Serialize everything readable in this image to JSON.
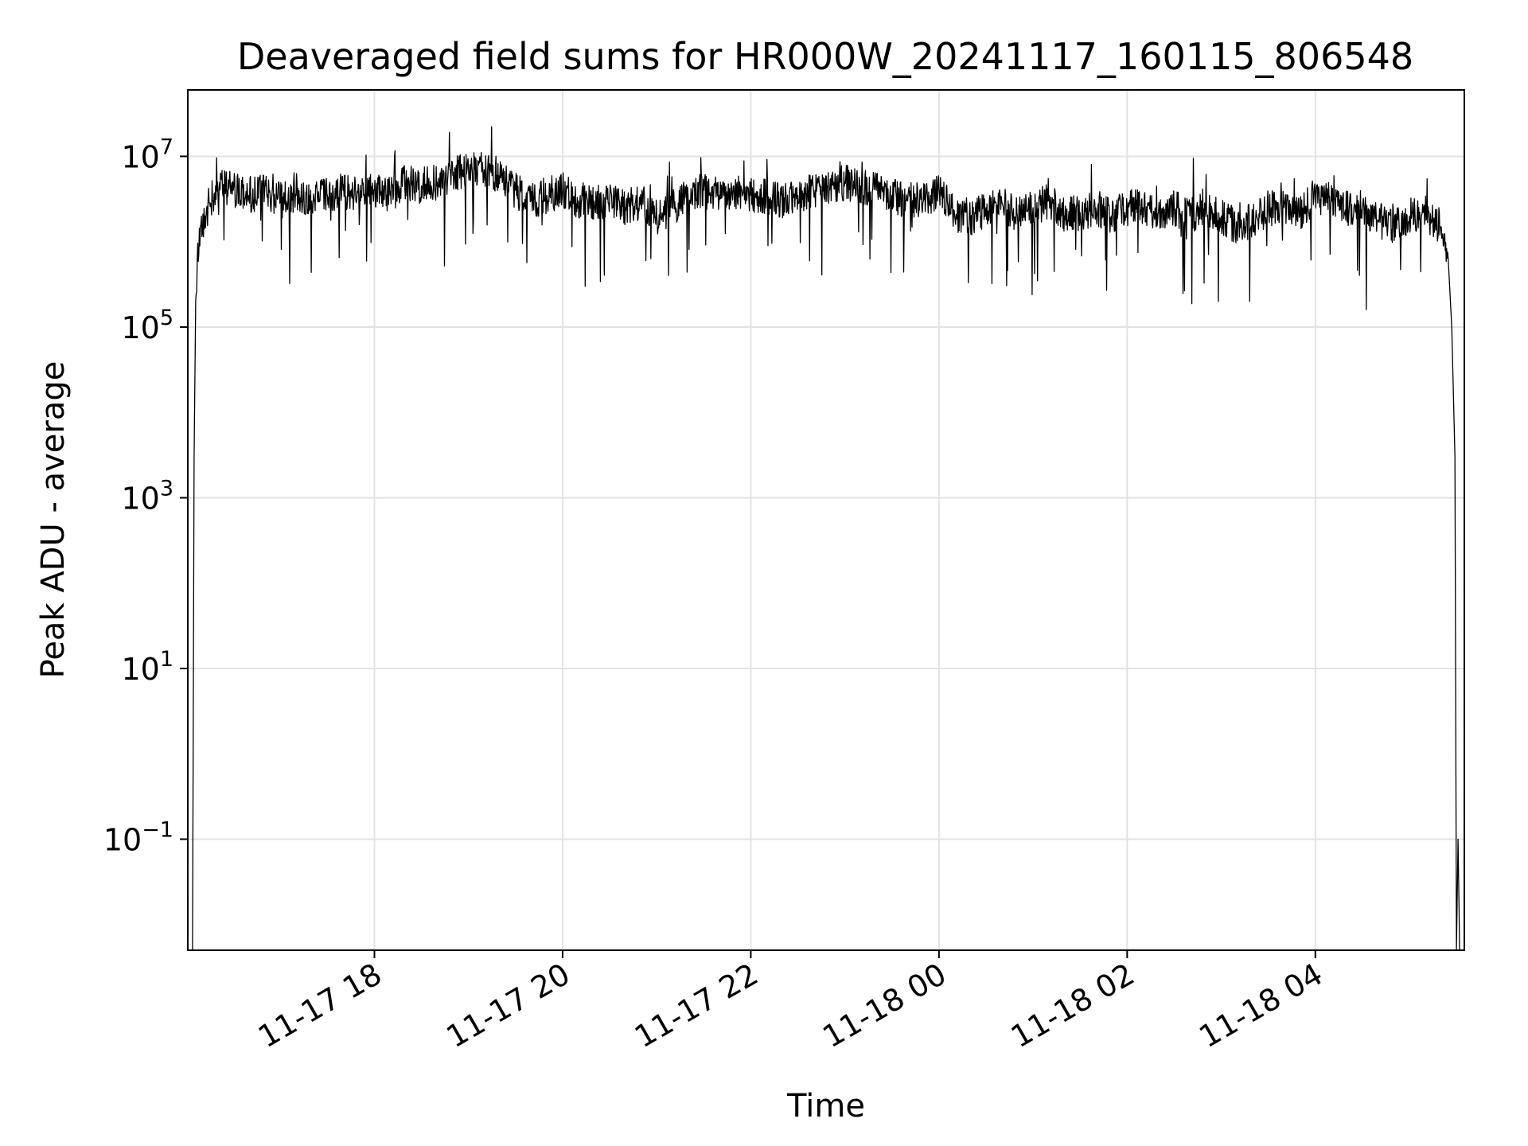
{
  "chart_data": {
    "type": "line",
    "title": "Deaveraged field sums for HR000W_20241117_160115_806548",
    "xlabel": "Time",
    "ylabel": "Peak ADU - average",
    "yscale": "log",
    "xlim": [
      "2024-11-17 16:01",
      "2024-11-18 05:35"
    ],
    "ylim": [
      0.005,
      60000000
    ],
    "grid": true,
    "line_color": "#000000",
    "x_ticks": [
      {
        "value": "2024-11-17 18:00",
        "label": "11-17 18"
      },
      {
        "value": "2024-11-17 20:00",
        "label": "11-17 20"
      },
      {
        "value": "2024-11-17 22:00",
        "label": "11-17 22"
      },
      {
        "value": "2024-11-18 00:00",
        "label": "11-18 00"
      },
      {
        "value": "2024-11-18 02:00",
        "label": "11-18 02"
      },
      {
        "value": "2024-11-18 04:00",
        "label": "11-18 04"
      }
    ],
    "y_ticks": [
      {
        "value": 10000000,
        "base": "10",
        "exp": "7"
      },
      {
        "value": 100000,
        "base": "10",
        "exp": "5"
      },
      {
        "value": 1000,
        "base": "10",
        "exp": "3"
      },
      {
        "value": 10,
        "base": "10",
        "exp": "1"
      },
      {
        "value": 0.1,
        "base": "10",
        "exp": "−1"
      }
    ],
    "series": [
      {
        "x": [
          "2024-11-17 16:04",
          "2024-11-17 16:05",
          "2024-11-17 16:06",
          "2024-11-17 16:07",
          "2024-11-17 16:09",
          "2024-11-17 16:12",
          "2024-11-17 16:20",
          "2024-11-17 16:30",
          "2024-11-17 16:40",
          "2024-11-17 16:50",
          "2024-11-17 17:00",
          "2024-11-17 17:10",
          "2024-11-17 17:20",
          "2024-11-17 17:30",
          "2024-11-17 17:40",
          "2024-11-17 17:50",
          "2024-11-17 18:00",
          "2024-11-17 18:10",
          "2024-11-17 18:20",
          "2024-11-17 18:30",
          "2024-11-17 18:40",
          "2024-11-17 18:50",
          "2024-11-17 19:00",
          "2024-11-17 19:10",
          "2024-11-17 19:20",
          "2024-11-17 19:30",
          "2024-11-17 19:40",
          "2024-11-17 19:50",
          "2024-11-17 20:00",
          "2024-11-17 20:10",
          "2024-11-17 20:20",
          "2024-11-17 20:30",
          "2024-11-17 20:40",
          "2024-11-17 20:50",
          "2024-11-17 21:00",
          "2024-11-17 21:10",
          "2024-11-17 21:20",
          "2024-11-17 21:30",
          "2024-11-17 21:40",
          "2024-11-17 21:50",
          "2024-11-17 22:00",
          "2024-11-17 22:10",
          "2024-11-17 22:20",
          "2024-11-17 22:30",
          "2024-11-17 22:40",
          "2024-11-17 22:50",
          "2024-11-17 23:00",
          "2024-11-17 23:10",
          "2024-11-17 23:20",
          "2024-11-17 23:30",
          "2024-11-17 23:40",
          "2024-11-17 23:50",
          "2024-11-18 00:00",
          "2024-11-18 00:10",
          "2024-11-18 00:20",
          "2024-11-18 00:30",
          "2024-11-18 00:40",
          "2024-11-18 00:50",
          "2024-11-18 01:00",
          "2024-11-18 01:10",
          "2024-11-18 01:20",
          "2024-11-18 01:30",
          "2024-11-18 01:40",
          "2024-11-18 01:50",
          "2024-11-18 02:00",
          "2024-11-18 02:10",
          "2024-11-18 02:20",
          "2024-11-18 02:30",
          "2024-11-18 02:40",
          "2024-11-18 02:50",
          "2024-11-18 03:00",
          "2024-11-18 03:10",
          "2024-11-18 03:20",
          "2024-11-18 03:30",
          "2024-11-18 03:40",
          "2024-11-18 03:50",
          "2024-11-18 04:00",
          "2024-11-18 04:10",
          "2024-11-18 04:20",
          "2024-11-18 04:30",
          "2024-11-18 04:40",
          "2024-11-18 04:50",
          "2024-11-18 05:00",
          "2024-11-18 05:10",
          "2024-11-18 05:20",
          "2024-11-18 05:25",
          "2024-11-18 05:27",
          "2024-11-18 05:29",
          "2024-11-18 05:30",
          "2024-11-18 05:31",
          "2024-11-18 05:32"
        ],
        "y": [
          0.005,
          3000,
          200000,
          600000,
          1500000,
          2000000,
          5000000,
          4000000,
          3500000,
          4000000,
          3000000,
          3500000,
          3000000,
          3500000,
          4000000,
          3500000,
          4000000,
          3500000,
          5000000,
          4500000,
          5000000,
          6000000,
          7000000,
          7000000,
          6000000,
          4000000,
          3000000,
          3500000,
          4000000,
          3000000,
          3000000,
          3000000,
          2500000,
          3000000,
          2000000,
          2500000,
          3500000,
          4000000,
          3500000,
          4000000,
          3500000,
          3500000,
          3000000,
          3500000,
          4000000,
          4000000,
          5000000,
          4500000,
          4000000,
          3500000,
          3000000,
          3000000,
          4000000,
          2000000,
          1800000,
          2500000,
          3000000,
          2000000,
          2500000,
          3000000,
          2000000,
          2200000,
          2500000,
          2000000,
          2500000,
          2500000,
          2200000,
          2500000,
          2000000,
          2500000,
          2000000,
          1500000,
          1800000,
          2500000,
          2500000,
          2000000,
          3500000,
          3000000,
          2500000,
          2500000,
          1800000,
          1500000,
          2000000,
          2200000,
          1500000,
          500000,
          100000,
          3000,
          0.005,
          0.1,
          0.005
        ]
      }
    ]
  }
}
